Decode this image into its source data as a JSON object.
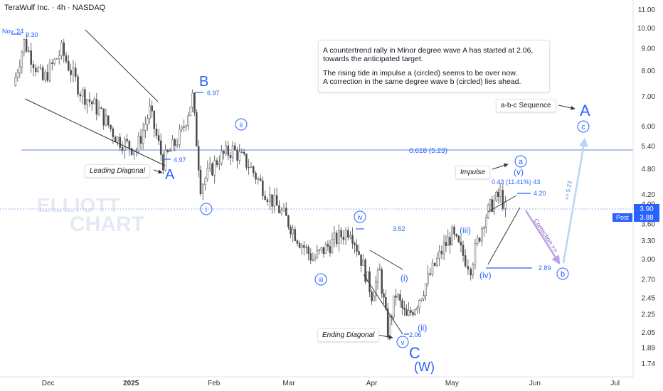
{
  "header": {
    "title": "TeraWulf Inc. · 4h · NASDAQ"
  },
  "watermark": {
    "line1": "ELLIOTT",
    "line2": "CHART"
  },
  "colors": {
    "accent": "#2962ff",
    "candle": "#4a4a4a",
    "trendline": "#333333",
    "fib_line": "#5b8ad6",
    "dotted_price": "#90b4f0",
    "correction_arrow": "#b9a2e3",
    "sequence_arrow": "#bcd2f7",
    "price_tag": "#2962ff"
  },
  "annotation_box": {
    "paragraph1": "A countertrend rally in Minor degree wave A has started at 2.06,\n towards the anticipated target.",
    "paragraph2": "The rising tide in impulse a (circled) seems to be over now.\nA correction in the same degree wave b (circled) lies ahead."
  },
  "callouts": {
    "leading_diagonal": "Leading Diagonal",
    "ending_diagonal": "Ending Diagonal",
    "impulse": "Impulse",
    "abc_sequence": "a-b-c Sequence"
  },
  "price_labels": {
    "nov24": "Nov '24",
    "p930": "9.30",
    "p697": "6.97",
    "p497": "4.97",
    "fib": "0.618 (5.23)",
    "p352": "3.52",
    "p206": "2.06",
    "p289": "2.89",
    "p420": "4.20",
    "gain": "0.43 (11.41%) 43",
    "target": ">> 5.23",
    "correction": "Correction >>"
  },
  "wave_labels": {
    "A_left": "A",
    "B": "B",
    "ii": "ii",
    "i": "i",
    "iii": "iii",
    "iv": "iv",
    "v": "v",
    "C": "C",
    "W": "(W)",
    "i_paren": "(i)",
    "ii_paren": "(ii)",
    "iii_paren": "(iii)",
    "iv_paren": "(iv)",
    "v_paren": "(v)",
    "a_circ": "a",
    "b_circ": "b",
    "c_circ": "c",
    "A_right": "A"
  },
  "price_tags": {
    "last": "3.90",
    "post_label": "Post",
    "post_value": "3.88"
  },
  "chart_data": {
    "type": "candlestick",
    "y_scale": "log",
    "ylim": [
      1.68,
      11.4
    ],
    "y_ticks": [
      11.0,
      10.0,
      9.0,
      8.0,
      7.0,
      6.0,
      5.4,
      4.8,
      4.2,
      4.0,
      3.6,
      3.3,
      3.0,
      2.7,
      2.45,
      2.25,
      2.05,
      1.89,
      1.74
    ],
    "y_tick_labels": [
      "11.00",
      "10.00",
      "9.00",
      "8.00",
      "7.00",
      "6.00",
      "5.40",
      "4.80",
      "4.20",
      "4.00",
      "3.60",
      "3.30",
      "3.00",
      "2.70",
      "2.45",
      "2.25",
      "2.05",
      "1.89",
      "1.74"
    ],
    "x_ticks": [
      "Dec",
      "2025",
      "Feb",
      "Mar",
      "Apr",
      "May",
      "Jun",
      "Jul"
    ],
    "price_path": [
      [
        "2024-11-18",
        7.4
      ],
      [
        "2024-11-22",
        9.3
      ],
      [
        "2024-11-29",
        7.6
      ],
      [
        "2024-12-06",
        8.9
      ],
      [
        "2024-12-13",
        7.2
      ],
      [
        "2024-12-20",
        6.5
      ],
      [
        "2024-12-27",
        5.6
      ],
      [
        "2025-01-03",
        5.3
      ],
      [
        "2025-01-08",
        6.5
      ],
      [
        "2025-01-13",
        4.97
      ],
      [
        "2025-01-20",
        5.8
      ],
      [
        "2025-01-24",
        6.97
      ],
      [
        "2025-01-27",
        4.4
      ],
      [
        "2025-02-03",
        5.1
      ],
      [
        "2025-02-08",
        5.3
      ],
      [
        "2025-02-14",
        4.9
      ],
      [
        "2025-02-21",
        4.2
      ],
      [
        "2025-02-28",
        3.7
      ],
      [
        "2025-03-05",
        3.3
      ],
      [
        "2025-03-10",
        3.0
      ],
      [
        "2025-03-18",
        3.3
      ],
      [
        "2025-03-24",
        3.52
      ],
      [
        "2025-03-28",
        3.0
      ],
      [
        "2025-04-01",
        2.5
      ],
      [
        "2025-04-04",
        2.8
      ],
      [
        "2025-04-07",
        2.06
      ],
      [
        "2025-04-10",
        2.5
      ],
      [
        "2025-04-14",
        2.2
      ],
      [
        "2025-04-18",
        2.4
      ],
      [
        "2025-04-22",
        2.7
      ],
      [
        "2025-04-28",
        3.2
      ],
      [
        "2025-05-01",
        3.4
      ],
      [
        "2025-05-06",
        3.0
      ],
      [
        "2025-05-08",
        2.89
      ],
      [
        "2025-05-13",
        3.7
      ],
      [
        "2025-05-16",
        4.0
      ],
      [
        "2025-05-19",
        4.2
      ],
      [
        "2025-05-21",
        3.9
      ]
    ],
    "levels": [
      {
        "name": "0.618 (5.23)",
        "value": 5.23
      },
      {
        "name": "last price",
        "value": 3.9
      }
    ]
  }
}
